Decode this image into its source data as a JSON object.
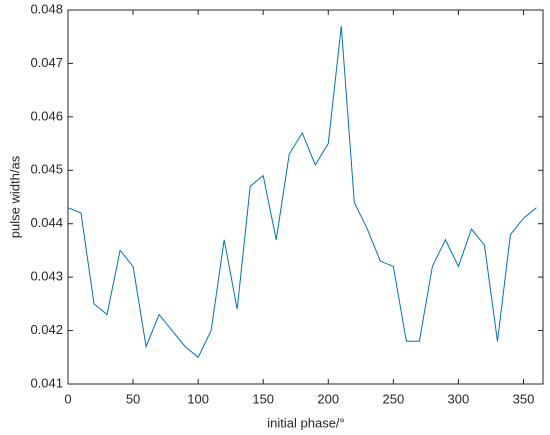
{
  "chart_data": {
    "type": "line",
    "xlabel": "initial phase/°",
    "ylabel": "pulse width/as",
    "x": [
      0,
      10,
      20,
      30,
      40,
      50,
      60,
      70,
      80,
      90,
      100,
      110,
      120,
      130,
      140,
      150,
      160,
      170,
      180,
      190,
      200,
      210,
      220,
      230,
      240,
      250,
      260,
      270,
      280,
      290,
      300,
      310,
      320,
      330,
      340,
      350,
      360
    ],
    "series": [
      {
        "name": "pulse width",
        "color": "#0072bd",
        "values": [
          0.0443,
          0.0442,
          0.0425,
          0.0423,
          0.0435,
          0.0432,
          0.0417,
          0.0423,
          0.042,
          0.0417,
          0.0415,
          0.042,
          0.0437,
          0.0424,
          0.0447,
          0.0449,
          0.0437,
          0.0453,
          0.0457,
          0.0451,
          0.0455,
          0.0477,
          0.0444,
          0.0439,
          0.0433,
          0.0432,
          0.0418,
          0.0418,
          0.0432,
          0.0437,
          0.0432,
          0.0439,
          0.0436,
          0.0418,
          0.0438,
          0.0441,
          0.0443
        ]
      }
    ],
    "xlim": [
      0,
      365
    ],
    "ylim": [
      0.041,
      0.048
    ],
    "xticks": [
      0,
      50,
      100,
      150,
      200,
      250,
      300,
      350
    ],
    "yticks": [
      0.041,
      0.042,
      0.043,
      0.044,
      0.045,
      0.046,
      0.047,
      0.048
    ]
  }
}
